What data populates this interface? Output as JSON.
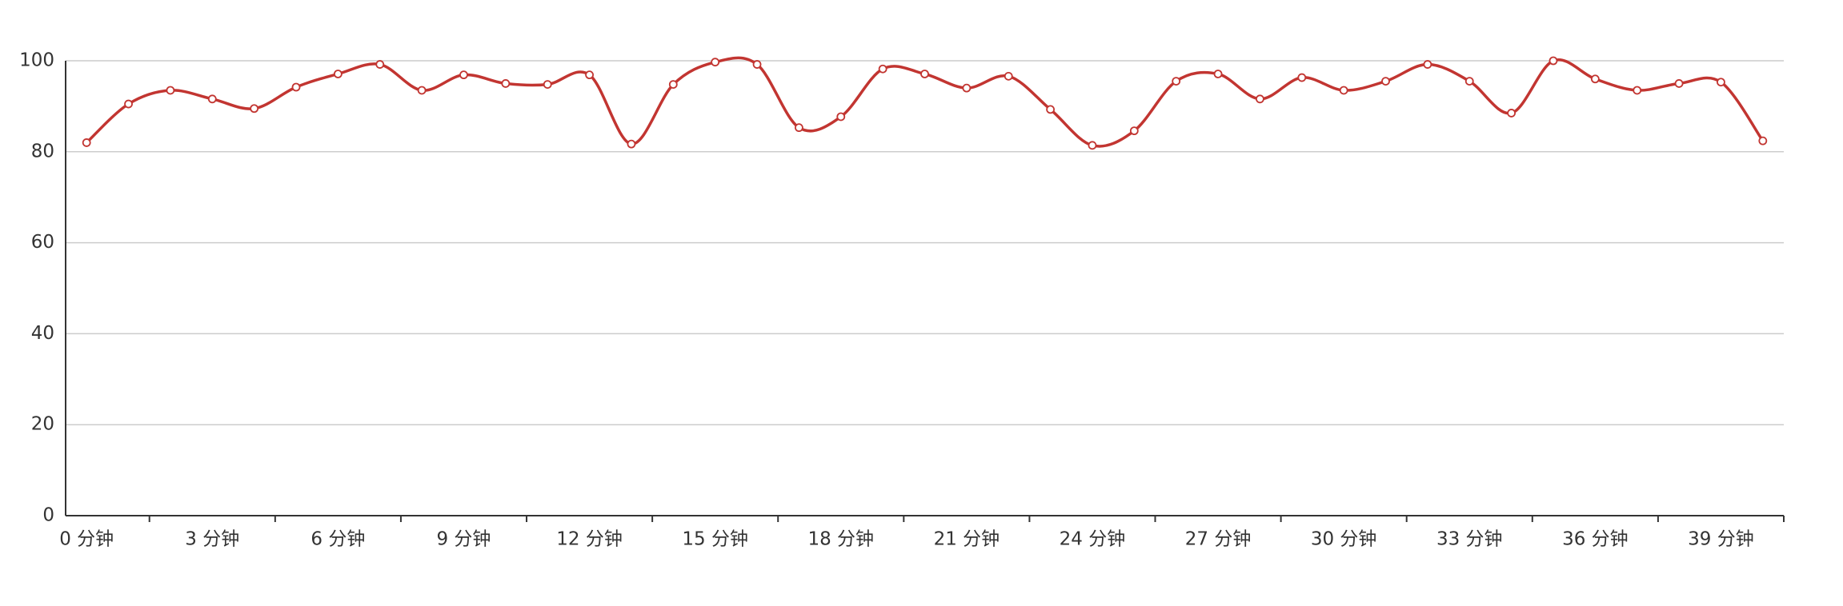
{
  "chart_data": {
    "type": "line",
    "categories": [
      "0 分钟",
      null,
      null,
      "3 分钟",
      null,
      null,
      "6 分钟",
      null,
      null,
      "9 分钟",
      null,
      null,
      "12 分钟",
      null,
      null,
      "15 分钟",
      null,
      null,
      "18 分钟",
      null,
      null,
      "21 分钟",
      null,
      null,
      "24 分钟",
      null,
      null,
      "27 分钟",
      null,
      null,
      "30 分钟",
      null,
      null,
      "33 分钟",
      null,
      null,
      "36 分钟",
      null,
      null,
      "39 分钟",
      null
    ],
    "series": [
      {
        "color": "#c23531",
        "values": [
          82,
          90.5,
          93.5,
          91.6,
          89.5,
          94.2,
          97.1,
          99.2,
          93.5,
          96.9,
          95,
          94.8,
          96.9,
          81.7,
          94.8,
          99.7,
          99.2,
          85.3,
          87.7,
          98.2,
          97.1,
          94,
          96.6,
          89.3,
          81.4,
          84.6,
          95.5,
          97.1,
          91.6,
          96.3,
          93.5,
          95.5,
          99.2,
          95.5,
          88.5,
          100,
          96,
          93.5,
          95,
          95.3,
          82.4
        ]
      }
    ],
    "ylim": [
      0,
      100
    ],
    "yticks": [
      0,
      20,
      40,
      60,
      80,
      100
    ],
    "grid": true,
    "smooth": true
  }
}
